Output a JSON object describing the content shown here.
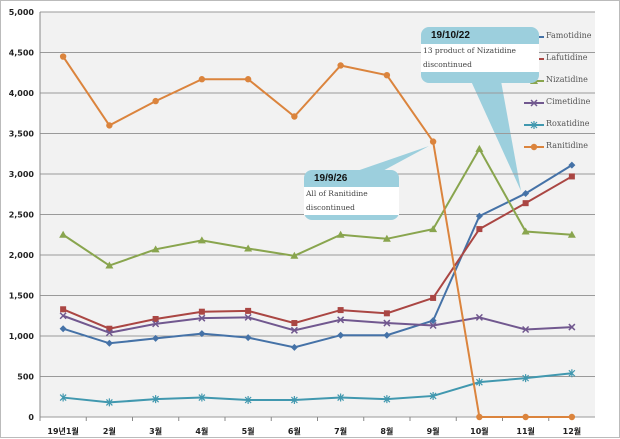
{
  "chart_data": {
    "type": "line",
    "title": "",
    "xlabel": "",
    "ylabel": "",
    "ylim": [
      0,
      5000
    ],
    "yticks": [
      "0",
      "500",
      "1,000",
      "1,500",
      "2,000",
      "2,500",
      "3,000",
      "3,500",
      "4,000",
      "4,500",
      "5,000"
    ],
    "categories": [
      "19년1월",
      "2월",
      "3월",
      "4월",
      "5월",
      "6월",
      "7월",
      "8월",
      "9월",
      "10월",
      "11월",
      "12월"
    ],
    "legend_position": "top-right",
    "series": [
      {
        "name": "Famotidine",
        "color": "#4572a7",
        "marker": "diamond",
        "values": [
          1090,
          910,
          970,
          1030,
          980,
          860,
          1010,
          1010,
          1190,
          2480,
          2760,
          3110
        ]
      },
      {
        "name": "Lafutidine",
        "color": "#aa4643",
        "marker": "square",
        "values": [
          1330,
          1090,
          1210,
          1300,
          1310,
          1160,
          1320,
          1280,
          1470,
          2320,
          2640,
          2970
        ]
      },
      {
        "name": "Nizatidine",
        "color": "#89a54e",
        "marker": "triangle",
        "values": [
          2250,
          1870,
          2070,
          2180,
          2080,
          1990,
          2250,
          2200,
          2320,
          3310,
          2290,
          2250
        ]
      },
      {
        "name": "Cimetidine",
        "color": "#71588f",
        "marker": "x",
        "values": [
          1250,
          1040,
          1150,
          1220,
          1230,
          1070,
          1200,
          1160,
          1130,
          1230,
          1080,
          1110
        ]
      },
      {
        "name": "Roxatidine",
        "color": "#4198af",
        "marker": "star",
        "values": [
          240,
          180,
          220,
          240,
          210,
          210,
          240,
          220,
          260,
          430,
          480,
          540
        ]
      },
      {
        "name": "Ranitidine",
        "color": "#db843d",
        "marker": "circle",
        "values": [
          4450,
          3600,
          3900,
          4170,
          4170,
          3710,
          4340,
          4220,
          3400,
          0,
          0,
          0
        ]
      }
    ],
    "annotations": [
      {
        "title": "19/10/22",
        "text1": "13 product of Nizatidine",
        "text2": "discontinued"
      },
      {
        "title": "19/9/26",
        "text1": "All of Ranitidine",
        "text2": "discontinued"
      }
    ]
  }
}
